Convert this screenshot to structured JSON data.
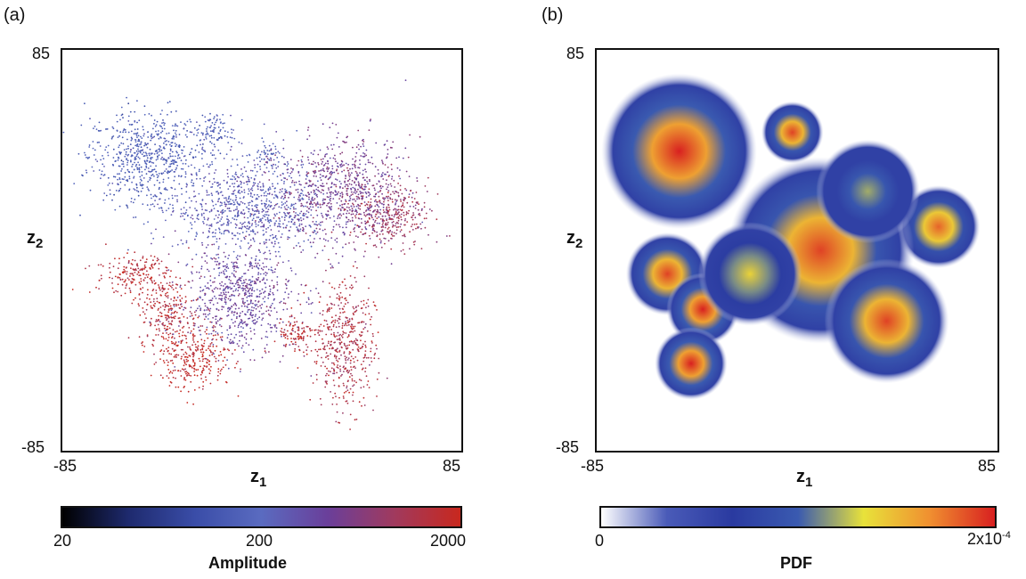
{
  "panels": [
    {
      "label": "(a)",
      "xlabel": "z",
      "xlabel_sub": "1",
      "ylabel": "z",
      "ylabel_sub": "2",
      "x_ticks": [
        "-85",
        "85"
      ],
      "y_ticks": [
        "85",
        "-85"
      ],
      "colorbar": {
        "title": "Amplitude",
        "ticks": [
          "20",
          "200",
          "2000"
        ],
        "colors": [
          "#000000",
          "#1e2a6e",
          "#3a4da8",
          "#5a6bc0",
          "#6a3f9a",
          "#a03a5e",
          "#c8281e"
        ]
      }
    },
    {
      "label": "(b)",
      "xlabel": "z",
      "xlabel_sub": "1",
      "ylabel": "z",
      "ylabel_sub": "2",
      "x_ticks": [
        "-85",
        "85"
      ],
      "y_ticks": [
        "85",
        "-85"
      ],
      "colorbar": {
        "title": "PDF",
        "tick_left": "0",
        "tick_right_base": "2x10",
        "tick_right_exp": "-4",
        "colors": [
          "#ffffff",
          "#4a5bb8",
          "#2a3aa0",
          "#3a5ab0",
          "#e8e23a",
          "#f09030",
          "#d82020"
        ]
      }
    }
  ],
  "chart_data": [
    {
      "type": "scatter",
      "title": "",
      "xlabel": "z1",
      "ylabel": "z2",
      "xlim": [
        -85,
        85
      ],
      "ylim": [
        -85,
        85
      ],
      "color_by": "Amplitude",
      "color_scale": "log",
      "color_range": [
        20,
        2000
      ],
      "clusters": [
        {
          "cx": -50,
          "cy": 40,
          "rx": 22,
          "ry": 18,
          "amplitude": 150
        },
        {
          "cx": -20,
          "cy": 50,
          "rx": 8,
          "ry": 8,
          "amplitude": 170
        },
        {
          "cx": 2,
          "cy": 40,
          "rx": 6,
          "ry": 5,
          "amplitude": 160
        },
        {
          "cx": -5,
          "cy": 18,
          "rx": 30,
          "ry": 18,
          "amplitude": 240
        },
        {
          "cx": 35,
          "cy": 25,
          "rx": 25,
          "ry": 20,
          "amplitude": 500
        },
        {
          "cx": 55,
          "cy": 15,
          "rx": 15,
          "ry": 12,
          "amplitude": 900
        },
        {
          "cx": -55,
          "cy": -10,
          "rx": 14,
          "ry": 8,
          "amplitude": 1500
        },
        {
          "cx": -40,
          "cy": -25,
          "rx": 12,
          "ry": 12,
          "amplitude": 1400
        },
        {
          "cx": -30,
          "cy": -45,
          "rx": 16,
          "ry": 12,
          "amplitude": 1700
        },
        {
          "cx": -10,
          "cy": -20,
          "rx": 22,
          "ry": 20,
          "amplitude": 400
        },
        {
          "cx": 35,
          "cy": -40,
          "rx": 12,
          "ry": 25,
          "amplitude": 1200
        },
        {
          "cx": 15,
          "cy": -35,
          "rx": 8,
          "ry": 8,
          "amplitude": 1500
        }
      ]
    },
    {
      "type": "heatmap",
      "title": "",
      "xlabel": "z1",
      "ylabel": "z2",
      "xlim": [
        -85,
        85
      ],
      "ylim": [
        -85,
        85
      ],
      "color_label": "PDF",
      "color_range": [
        0,
        0.0002
      ],
      "peaks": [
        {
          "cx": -50,
          "cy": 42,
          "r": 15,
          "density": 0.0002
        },
        {
          "cx": -2,
          "cy": 50,
          "r": 6,
          "density": 0.00019
        },
        {
          "cx": 60,
          "cy": 10,
          "r": 8,
          "density": 0.00018
        },
        {
          "cx": 10,
          "cy": 0,
          "r": 18,
          "density": 0.00019
        },
        {
          "cx": -55,
          "cy": -10,
          "r": 8,
          "density": 0.00019
        },
        {
          "cx": -40,
          "cy": -25,
          "r": 7,
          "density": 0.0002
        },
        {
          "cx": -45,
          "cy": -48,
          "r": 7,
          "density": 0.0002
        },
        {
          "cx": 38,
          "cy": -30,
          "r": 12,
          "density": 0.00019
        },
        {
          "cx": -20,
          "cy": -10,
          "r": 10,
          "density": 0.00014
        },
        {
          "cx": 30,
          "cy": 25,
          "r": 10,
          "density": 0.00012
        }
      ]
    }
  ]
}
